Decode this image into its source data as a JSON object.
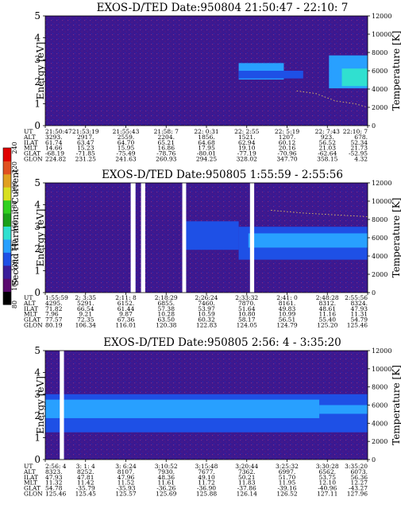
{
  "figure": {
    "colorbar": {
      "label": "Second Harmonic Current",
      "ticks": [
        "80",
        "100",
        "120",
        "140",
        "160",
        "180",
        "200",
        "220",
        "240"
      ],
      "colors": [
        "#000000",
        "#5a0a6e",
        "#3a1e9a",
        "#1e50e6",
        "#28a0ff",
        "#30e0d0",
        "#1aa01a",
        "#30d020",
        "#d8e020",
        "#e0a020",
        "#e05020",
        "#e00000"
      ]
    }
  },
  "chart_data": [
    {
      "type": "heatmap",
      "title": "EXOS-D/TED   Date:950804  21:50:47 - 22:10: 7",
      "ylabel": "Energy [eV]",
      "y2label": "Temperature [K]",
      "ylim": [
        0,
        5
      ],
      "y2lim": [
        0,
        12000
      ],
      "yticks": [
        "0",
        "1",
        "2",
        "3",
        "4",
        "5"
      ],
      "y2ticks": [
        "0",
        "2000",
        "4000",
        "6000",
        "8000",
        "10000",
        "12000"
      ],
      "ephemeris_labels": [
        "UT",
        "ALT",
        "ILAT",
        "MLT",
        "GLAT",
        "GLON"
      ],
      "ephemeris_columns": [
        [
          "21:50:47",
          "3293.",
          "61.74",
          "14.66",
          "-68.19",
          "224.82"
        ],
        [
          "21:53:19",
          "2917.",
          "63.47",
          "15.23",
          "-71.85",
          "231.25"
        ],
        [
          "21:55:43",
          "2559.",
          "64.70",
          "15.95",
          "-75.49",
          "241.63"
        ],
        [
          "21:58: 7",
          "2204.",
          "65.21",
          "16.86",
          "-78.76",
          "260.93"
        ],
        [
          "22: 0:31",
          "1856.",
          "64.68",
          "17.95",
          "-80.01",
          "294.25"
        ],
        [
          "22: 2:55",
          "1521.",
          "62.94",
          "19.10",
          "-77.19",
          "328.02"
        ],
        [
          "22: 5:19",
          "1207.",
          "60.12",
          "20.16",
          "-70.96",
          "347.70"
        ],
        [
          "22: 7:43",
          "923.",
          "56.52",
          "21.03",
          "-62.64",
          "358.15"
        ],
        [
          "22:10: 7",
          "678.",
          "52.34",
          "21.73",
          "-52.95",
          "4.32"
        ]
      ],
      "bands": [
        {
          "t_start": 0.6,
          "t_end": 0.74,
          "e_lo": 2.1,
          "e_hi": 2.85,
          "level": "light-blue"
        },
        {
          "t_start": 0.6,
          "t_end": 0.8,
          "e_lo": 2.15,
          "e_hi": 2.5,
          "level": "blue"
        },
        {
          "t_start": 0.88,
          "t_end": 1.0,
          "e_lo": 1.7,
          "e_hi": 3.2,
          "level": "light-blue"
        },
        {
          "t_start": 0.92,
          "t_end": 1.0,
          "e_lo": 1.8,
          "e_hi": 2.6,
          "level": "cyan"
        }
      ],
      "gaps": [],
      "temperature_trace": [
        [
          0.78,
          3800
        ],
        [
          0.84,
          3500
        ],
        [
          0.9,
          2700
        ],
        [
          0.96,
          2400
        ],
        [
          1.0,
          2000
        ]
      ]
    },
    {
      "type": "heatmap",
      "title": "EXOS-D/TED   Date:950805   1:55:59 - 2:55:56",
      "ylabel": "Energy [eV]",
      "y2label": "Temperature [K]",
      "ylim": [
        0,
        5
      ],
      "y2lim": [
        0,
        12000
      ],
      "yticks": [
        "0",
        "1",
        "2",
        "3",
        "4",
        "5"
      ],
      "y2ticks": [
        "0",
        "2000",
        "4000",
        "6000",
        "8000",
        "10000",
        "12000"
      ],
      "ephemeris_labels": [
        "UT",
        "ALT",
        "ILAT",
        "MLT",
        "GLAT",
        "GLON"
      ],
      "ephemeris_columns": [
        [
          "1:55:59",
          "4295.",
          "71.82",
          "7.96",
          "77.57",
          "80.19"
        ],
        [
          "2: 3:35",
          "5291.",
          "66.54",
          "9.21",
          "72.35",
          "106.34"
        ],
        [
          "2:11: 8",
          "6152.",
          "61.44",
          "9.87",
          "67.36",
          "116.01"
        ],
        [
          "2:18:29",
          "6855.",
          "57.38",
          "10.28",
          "63.50",
          "120.38"
        ],
        [
          "2:26:24",
          "7460.",
          "53.97",
          "10.59",
          "60.32",
          "122.83"
        ],
        [
          "2:33:32",
          "7870.",
          "51.64",
          "10.80",
          "58.17",
          "124.05"
        ],
        [
          "2:41: 0",
          "8161.",
          "49.83",
          "10.99",
          "56.51",
          "124.79"
        ],
        [
          "2:48:28",
          "8312.",
          "48.61",
          "11.16",
          "55.40",
          "125.20"
        ],
        [
          "2:55:56",
          "8324.",
          "47.93",
          "11.31",
          "54.79",
          "125.46"
        ]
      ],
      "bands": [
        {
          "t_start": 0.43,
          "t_end": 0.6,
          "e_lo": 1.95,
          "e_hi": 3.25,
          "level": "blue"
        },
        {
          "t_start": 0.6,
          "t_end": 1.0,
          "e_lo": 1.5,
          "e_hi": 3.0,
          "level": "blue"
        },
        {
          "t_start": 0.63,
          "t_end": 1.0,
          "e_lo": 2.05,
          "e_hi": 2.7,
          "level": "light-blue"
        }
      ],
      "gaps": [
        [
          0.265,
          0.28
        ],
        [
          0.297,
          0.31
        ],
        [
          0.425,
          0.437
        ],
        [
          0.635,
          0.648
        ]
      ],
      "temperature_trace": [
        [
          0.7,
          9000
        ],
        [
          0.8,
          8700
        ],
        [
          0.9,
          8500
        ],
        [
          1.0,
          8300
        ]
      ]
    },
    {
      "type": "heatmap",
      "title": "EXOS-D/TED   Date:950805   2:56: 4 - 3:35:20",
      "ylabel": "Energy [eV]",
      "y2label": "Temperature [K]",
      "ylim": [
        0,
        5
      ],
      "y2lim": [
        0,
        12000
      ],
      "yticks": [
        "0",
        "1",
        "2",
        "3",
        "4",
        "5"
      ],
      "y2ticks": [
        "0",
        "2000",
        "4000",
        "6000",
        "8000",
        "10000",
        "12000"
      ],
      "ephemeris_labels": [
        "UT",
        "ALT",
        "ILAT",
        "MLT",
        "GLAT",
        "GLON"
      ],
      "ephemeris_columns": [
        [
          "2:56: 4",
          "8323.",
          "47.93",
          "11.32",
          "54.78",
          "125.46"
        ],
        [
          "3: 1: 4",
          "8252.",
          "47.81",
          "11.42",
          "-35.79",
          "125.45"
        ],
        [
          "3: 6:24",
          "8107.",
          "47.96",
          "11.52",
          "-35.93",
          "125.57"
        ],
        [
          "3:10:52",
          "7930.",
          "48.36",
          "11.61",
          "-36.26",
          "125.69"
        ],
        [
          "3:15:48",
          "7677.",
          "49.10",
          "11.72",
          "-36.90",
          "125.88"
        ],
        [
          "3:20:44",
          "7362.",
          "50.21",
          "11.83",
          "-37.86",
          "126.14"
        ],
        [
          "3:25:32",
          "6997.",
          "51.70",
          "11.95",
          "-39.16",
          "126.52"
        ],
        [
          "3:30:28",
          "6562.",
          "53.75",
          "12.10",
          "-40.96",
          "127.11"
        ],
        [
          "3:35:20",
          "6073.",
          "56.36",
          "12.27",
          "-43.27",
          "127.96"
        ]
      ],
      "bands": [
        {
          "t_start": 0.0,
          "t_end": 1.0,
          "e_lo": 1.25,
          "e_hi": 3.0,
          "level": "blue"
        },
        {
          "t_start": 0.0,
          "t_end": 0.85,
          "e_lo": 1.9,
          "e_hi": 2.75,
          "level": "light-blue"
        },
        {
          "t_start": 0.85,
          "t_end": 1.0,
          "e_lo": 2.1,
          "e_hi": 2.5,
          "level": "light-blue"
        }
      ],
      "gaps": [
        [
          0.045,
          0.058
        ]
      ],
      "temperature_trace": []
    }
  ]
}
